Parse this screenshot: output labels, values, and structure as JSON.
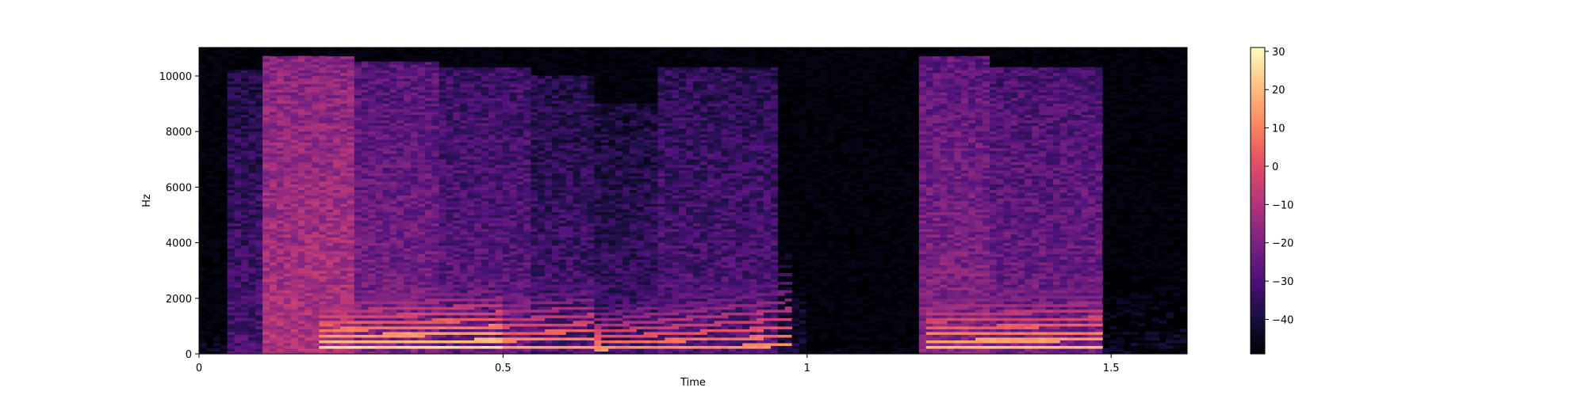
{
  "chart_data": {
    "type": "heatmap",
    "subtype": "spectrogram",
    "title": "",
    "xlabel": "Time",
    "ylabel": "Hz",
    "xlim": [
      0,
      1.625
    ],
    "ylim": [
      0,
      11025
    ],
    "x_ticks": [
      0,
      0.5,
      1,
      1.5
    ],
    "x_tick_labels": [
      "0",
      "0.5",
      "1",
      "1.5"
    ],
    "y_ticks": [
      0,
      2000,
      4000,
      6000,
      8000,
      10000
    ],
    "y_tick_labels": [
      "0",
      "2000",
      "4000",
      "6000",
      "8000",
      "10000"
    ],
    "colormap": "magma",
    "colorbar": {
      "range": [
        -49,
        31
      ],
      "ticks": [
        30,
        20,
        10,
        0,
        -10,
        -20,
        -30,
        -40
      ],
      "tick_labels": [
        "30",
        "20",
        "10",
        "0",
        "−10",
        "−20",
        "−30",
        "−40"
      ]
    },
    "grid": false,
    "segments": [
      {
        "t_start": 0.0,
        "t_end": 0.05,
        "level_db": -45,
        "f_top": 1000
      },
      {
        "t_start": 0.05,
        "t_end": 0.1,
        "level_db": -30,
        "f_top": 10200
      },
      {
        "t_start": 0.1,
        "t_end": 0.25,
        "level_db": -10,
        "f_top": 10700
      },
      {
        "t_start": 0.25,
        "t_end": 0.4,
        "level_db": -20,
        "f_top": 10500
      },
      {
        "t_start": 0.4,
        "t_end": 0.55,
        "level_db": -25,
        "f_top": 10300
      },
      {
        "t_start": 0.55,
        "t_end": 0.65,
        "level_db": -30,
        "f_top": 10000
      },
      {
        "t_start": 0.65,
        "t_end": 0.75,
        "level_db": -32,
        "f_top": 9000
      },
      {
        "t_start": 0.75,
        "t_end": 0.95,
        "level_db": -28,
        "f_top": 10300
      },
      {
        "t_start": 0.95,
        "t_end": 1.0,
        "level_db": -40,
        "f_top": 2500
      },
      {
        "t_start": 1.0,
        "t_end": 1.18,
        "level_db": -48,
        "f_top": 500
      },
      {
        "t_start": 1.18,
        "t_end": 1.3,
        "level_db": -18,
        "f_top": 10700
      },
      {
        "t_start": 1.3,
        "t_end": 1.48,
        "level_db": -22,
        "f_top": 10300
      },
      {
        "t_start": 1.48,
        "t_end": 1.625,
        "level_db": -45,
        "f_top": 3000
      }
    ],
    "harmonic_tracks": [
      {
        "t_start": 0.2,
        "t_end": 0.5,
        "f0_start": 220,
        "f0_end": 250,
        "peak_db": 25
      },
      {
        "t_start": 0.5,
        "t_end": 0.65,
        "f0_start": 250,
        "f0_end": 280,
        "peak_db": 15
      },
      {
        "t_start": 0.65,
        "t_end": 0.97,
        "f0_start": 200,
        "f0_end": 320,
        "peak_db": 12
      },
      {
        "t_start": 1.2,
        "t_end": 1.48,
        "f0_start": 240,
        "f0_end": 260,
        "peak_db": 20
      }
    ]
  }
}
